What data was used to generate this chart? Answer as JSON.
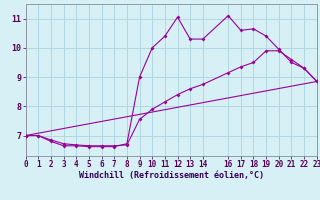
{
  "xlabel": "Windchill (Refroidissement éolien,°C)",
  "bg_color": "#d6f0f5",
  "grid_color": "#b0d8e0",
  "line_color": "#990099",
  "line1_x": [
    0,
    1,
    2,
    3,
    4,
    5,
    6,
    7,
    8,
    9,
    10,
    11,
    12,
    13,
    14,
    16,
    17,
    18,
    19,
    20,
    21,
    22,
    23
  ],
  "line1_y": [
    7.0,
    7.0,
    6.8,
    6.65,
    6.65,
    6.62,
    6.62,
    6.62,
    6.72,
    9.0,
    10.0,
    10.4,
    11.05,
    10.3,
    10.3,
    11.1,
    10.6,
    10.65,
    10.4,
    9.95,
    9.5,
    9.3,
    8.85
  ],
  "line2_x": [
    0,
    1,
    2,
    3,
    4,
    5,
    6,
    7,
    8,
    9,
    10,
    11,
    12,
    13,
    14,
    16,
    17,
    18,
    19,
    20,
    21,
    22,
    23
  ],
  "line2_y": [
    7.0,
    7.0,
    6.85,
    6.72,
    6.68,
    6.65,
    6.65,
    6.65,
    6.68,
    7.55,
    7.9,
    8.15,
    8.4,
    8.6,
    8.75,
    9.15,
    9.35,
    9.5,
    9.9,
    9.9,
    9.6,
    9.3,
    8.85
  ],
  "line3_x": [
    0,
    23
  ],
  "line3_y": [
    7.0,
    8.85
  ],
  "ylim": [
    6.3,
    11.5
  ],
  "xlim": [
    0,
    23
  ],
  "yticks": [
    7,
    8,
    9,
    10,
    11
  ],
  "xticks": [
    0,
    1,
    2,
    3,
    4,
    5,
    6,
    7,
    8,
    9,
    10,
    11,
    12,
    13,
    14,
    16,
    17,
    18,
    19,
    20,
    21,
    22,
    23
  ],
  "xlabel_fontsize": 6,
  "tick_fontsize": 5.5,
  "marker_size": 2.0
}
